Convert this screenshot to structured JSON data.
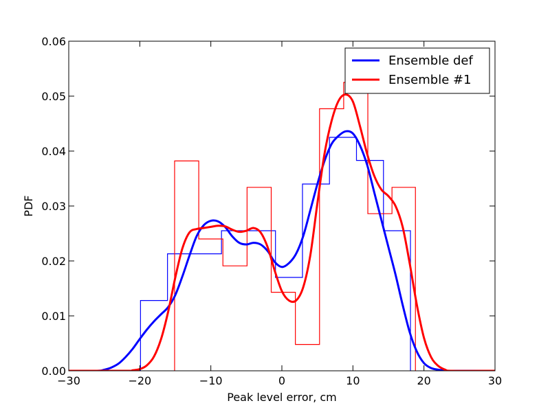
{
  "chart_data": {
    "type": "line",
    "title": "",
    "xlabel": "Peak level error, cm",
    "ylabel": "PDF",
    "xlim": [
      -30,
      30
    ],
    "ylim": [
      0,
      0.06
    ],
    "x_ticks": [
      -30,
      -20,
      -10,
      0,
      10,
      20,
      30
    ],
    "x_tick_labels": [
      "−30",
      "−20",
      "−10",
      "0",
      "10",
      "20",
      "30"
    ],
    "y_ticks": [
      0,
      0.01,
      0.02,
      0.03,
      0.04,
      0.05,
      0.06
    ],
    "y_tick_labels": [
      "0.00",
      "0.01",
      "0.02",
      "0.03",
      "0.04",
      "0.05",
      "0.06"
    ],
    "grid": false,
    "legend_position": "top-right",
    "colors": {
      "ensemble_def": "#0000ff",
      "ensemble_1": "#ff0000"
    },
    "series": [
      {
        "name": "Ensemble def",
        "color": "#0000ff",
        "kde": {
          "x": [
            -30,
            -26,
            -25,
            -24,
            -23,
            -22,
            -21,
            -20,
            -19,
            -18,
            -17,
            -16,
            -15,
            -14,
            -13,
            -12,
            -11,
            -10,
            -9,
            -8,
            -7,
            -6,
            -5,
            -4,
            -3,
            -2,
            -1,
            0,
            1,
            2,
            3,
            4,
            5,
            6,
            7,
            8,
            9,
            10,
            11,
            12,
            13,
            14,
            15,
            16,
            17,
            18,
            19,
            20,
            21,
            22,
            23,
            24,
            30
          ],
          "y": [
            0,
            0,
            0.0002,
            0.0006,
            0.0013,
            0.0025,
            0.004,
            0.0058,
            0.0075,
            0.009,
            0.0103,
            0.0116,
            0.0138,
            0.0172,
            0.021,
            0.0245,
            0.0265,
            0.0273,
            0.0272,
            0.0262,
            0.0245,
            0.0233,
            0.023,
            0.0233,
            0.023,
            0.0218,
            0.0198,
            0.0189,
            0.0196,
            0.0213,
            0.0245,
            0.0292,
            0.034,
            0.0382,
            0.0413,
            0.0428,
            0.0436,
            0.0432,
            0.041,
            0.0375,
            0.0325,
            0.0275,
            0.0225,
            0.0175,
            0.012,
            0.007,
            0.0035,
            0.0014,
            0.0005,
            0.0002,
            5e-05,
            0,
            0
          ]
        },
        "histogram": {
          "edges": [
            -19.9,
            -16.1,
            -8.5,
            -0.9,
            2.9,
            6.7,
            10.5,
            14.3,
            18.1
          ],
          "values": [
            0.0128,
            0.0213,
            0.0255,
            0.017,
            0.034,
            0.0425,
            0.0383,
            0.0255
          ]
        }
      },
      {
        "name": "Ensemble #1",
        "color": "#ff0000",
        "kde": {
          "x": [
            -30,
            -22,
            -21,
            -20,
            -19,
            -18,
            -17,
            -16,
            -15,
            -14,
            -13,
            -12,
            -11,
            -10,
            -9,
            -8,
            -7,
            -6,
            -5,
            -4,
            -3,
            -2,
            -1,
            0,
            1,
            2,
            3,
            4,
            5,
            6,
            7,
            8,
            9,
            10,
            11,
            12,
            13,
            14,
            15,
            16,
            17,
            18,
            19,
            20,
            21,
            22,
            23,
            24,
            30
          ],
          "y": [
            0,
            0,
            0.0001,
            0.0003,
            0.001,
            0.0026,
            0.0058,
            0.0108,
            0.017,
            0.0223,
            0.0252,
            0.0258,
            0.026,
            0.0262,
            0.0264,
            0.0263,
            0.0257,
            0.0253,
            0.0255,
            0.026,
            0.0252,
            0.0225,
            0.0182,
            0.0145,
            0.0128,
            0.0128,
            0.0152,
            0.021,
            0.0305,
            0.0395,
            0.0455,
            0.0492,
            0.0503,
            0.049,
            0.0445,
            0.0395,
            0.0355,
            0.033,
            0.0318,
            0.03,
            0.0262,
            0.0195,
            0.012,
            0.006,
            0.0025,
            0.0009,
            0.0002,
            0,
            0
          ]
        },
        "histogram": {
          "edges": [
            -15.1,
            -11.7,
            -8.3,
            -4.9,
            -1.5,
            1.9,
            5.3,
            8.7,
            12.1,
            15.5,
            18.8
          ],
          "values": [
            0.0382,
            0.024,
            0.0191,
            0.0334,
            0.0143,
            0.0048,
            0.0477,
            0.0525,
            0.0286,
            0.0334
          ]
        }
      }
    ]
  }
}
